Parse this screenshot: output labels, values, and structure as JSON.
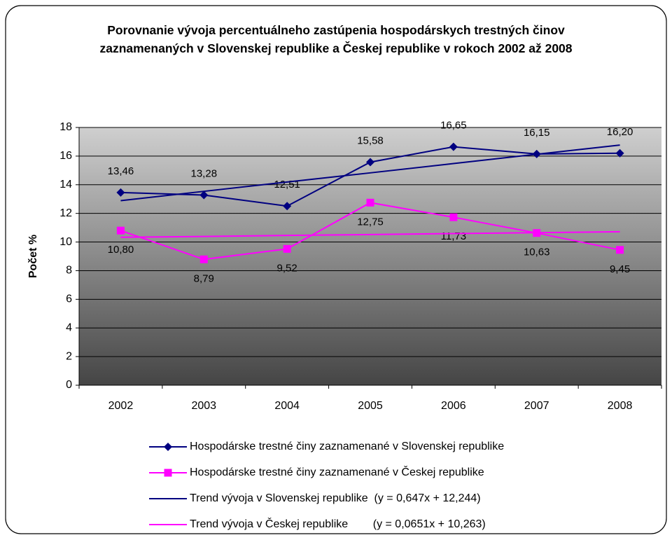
{
  "chart_data": {
    "type": "line",
    "title": "Porovnanie vývoja percentuálneho zastúpenia hospodárskych trestných činov zaznamenaných v Slovenskej republike a Českej republike v rokoch 2002 až 2008",
    "y_label": "Počet %",
    "categories": [
      "2002",
      "2003",
      "2004",
      "2005",
      "2006",
      "2007",
      "2008"
    ],
    "ylim": [
      0,
      18
    ],
    "yticks": [
      0,
      2,
      4,
      6,
      8,
      10,
      12,
      14,
      16,
      18
    ],
    "grid": true,
    "legend": "bottom",
    "series": [
      {
        "name": "Hospodárske trestné činy zaznamenané v Slovenskej republike",
        "color": "#000080",
        "marker": "diamond",
        "values": [
          13.46,
          13.28,
          12.51,
          15.58,
          16.65,
          16.15,
          16.2
        ],
        "value_labels": [
          "13,46",
          "13,28",
          "12,51",
          "15,58",
          "16,65",
          "16,15",
          "16,20"
        ],
        "label_position": "above"
      },
      {
        "name": "Hospodárske trestné činy zaznamenané v Českej republike",
        "color": "#ff00ff",
        "marker": "square",
        "values": [
          10.8,
          8.79,
          9.52,
          12.75,
          11.73,
          10.63,
          9.45
        ],
        "value_labels": [
          "10,80",
          "8,79",
          "9,52",
          "12,75",
          "11,73",
          "10,63",
          "9,45"
        ],
        "label_position": "below"
      },
      {
        "name": "Trend vývoja v Slovenskej republike  (y = 0,647x + 12,244)",
        "color": "#000080",
        "marker": "none",
        "values": [
          12.89,
          13.54,
          14.19,
          14.83,
          15.48,
          16.13,
          16.77
        ]
      },
      {
        "name": "Trend vývoja v Českej republike        (y = 0,0651x + 10,263)",
        "color": "#ff00ff",
        "marker": "none",
        "values": [
          10.33,
          10.39,
          10.46,
          10.52,
          10.59,
          10.65,
          10.72
        ]
      }
    ]
  }
}
